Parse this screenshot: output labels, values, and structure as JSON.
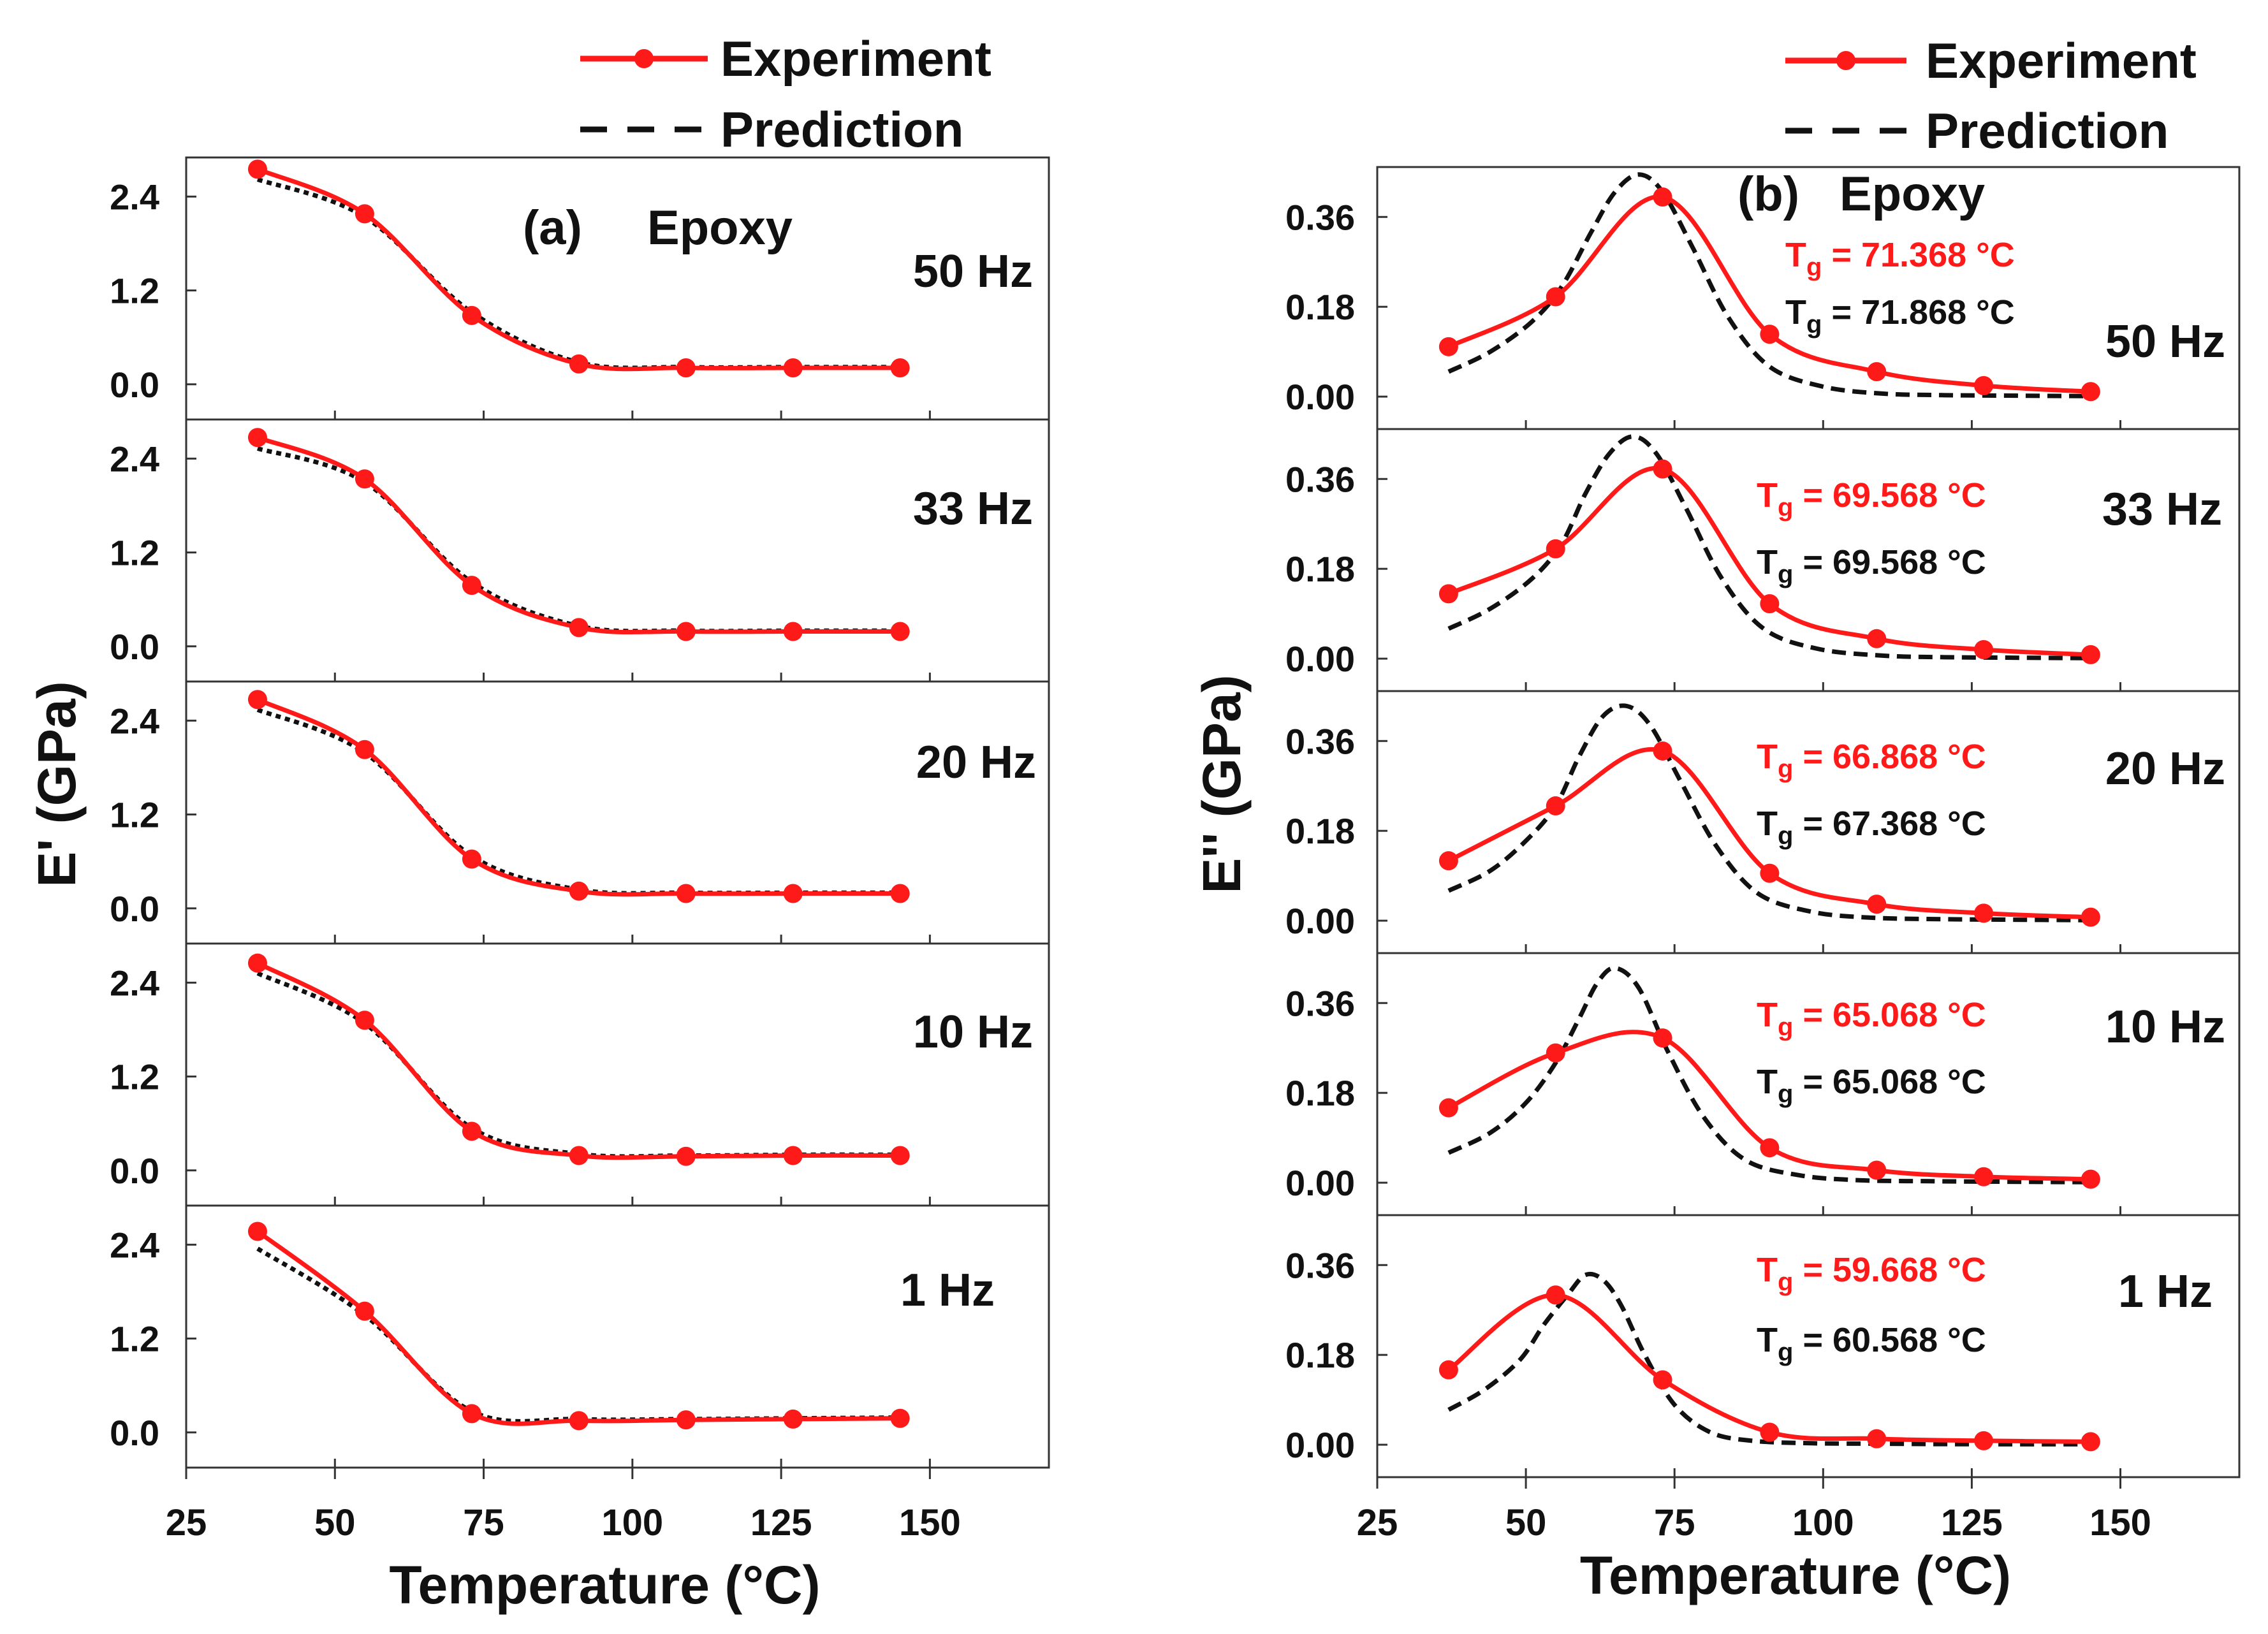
{
  "colors": {
    "experiment": "#ff1a1a",
    "prediction": "#111111",
    "frame": "#333333"
  },
  "legend": {
    "experiment": "Experiment",
    "prediction": "Prediction"
  },
  "chart_data": [
    {
      "type": "line",
      "panel_label": "(a)",
      "material": "Epoxy",
      "xlabel": "Temperature (°C)",
      "ylabel": "E' (GPa)",
      "xlim": [
        25,
        170
      ],
      "xticks": [
        25,
        50,
        75,
        100,
        125,
        150
      ],
      "ylim": [
        -0.45,
        2.9
      ],
      "yticks": [
        "0.0",
        "1.2",
        "2.4"
      ],
      "x": [
        37,
        55,
        73,
        91,
        109,
        127,
        145
      ],
      "panels": [
        {
          "freq": "50 Hz",
          "experiment": [
            2.75,
            2.18,
            0.88,
            0.26,
            0.21,
            0.21,
            0.21
          ],
          "prediction": [
            2.62,
            2.14,
            0.92,
            0.28,
            0.22,
            0.22,
            0.22
          ]
        },
        {
          "freq": "33 Hz",
          "experiment": [
            2.67,
            2.14,
            0.78,
            0.24,
            0.19,
            0.19,
            0.19
          ],
          "prediction": [
            2.53,
            2.1,
            0.82,
            0.26,
            0.2,
            0.2,
            0.2
          ]
        },
        {
          "freq": "20 Hz",
          "experiment": [
            2.67,
            2.03,
            0.63,
            0.22,
            0.19,
            0.19,
            0.19
          ],
          "prediction": [
            2.54,
            1.99,
            0.67,
            0.24,
            0.2,
            0.2,
            0.2
          ]
        },
        {
          "freq": "10 Hz",
          "experiment": [
            2.65,
            1.92,
            0.5,
            0.19,
            0.18,
            0.19,
            0.19
          ],
          "prediction": [
            2.52,
            1.88,
            0.54,
            0.21,
            0.19,
            0.2,
            0.2
          ]
        },
        {
          "freq": "1 Hz",
          "experiment": [
            2.57,
            1.55,
            0.24,
            0.15,
            0.16,
            0.17,
            0.18
          ],
          "prediction": [
            2.35,
            1.5,
            0.27,
            0.17,
            0.17,
            0.18,
            0.19
          ]
        }
      ]
    },
    {
      "type": "line",
      "panel_label": "(b)",
      "material": "Epoxy",
      "xlabel": "Temperature (°C)",
      "ylabel": "E'' (GPa)",
      "xlim": [
        25,
        170
      ],
      "xticks": [
        25,
        50,
        75,
        100,
        125,
        150
      ],
      "ylim": [
        -0.065,
        0.46
      ],
      "yticks": [
        "0.00",
        "0.18",
        "0.36"
      ],
      "x": [
        37,
        55,
        73,
        91,
        109,
        127,
        145
      ],
      "panels": [
        {
          "freq": "50 Hz",
          "tg_exp_label": "Tg",
          "tg_exp_value": " = 71.368 °C",
          "tg_pred_label": "Tg",
          "tg_pred_value": " = 71.868 °C",
          "experiment": [
            0.1,
            0.2,
            0.4,
            0.125,
            0.05,
            0.022,
            0.01
          ],
          "prediction_x": [
            37,
            44,
            51,
            56,
            61,
            65,
            69,
            73,
            78,
            84,
            91,
            100,
            110,
            120,
            130,
            145
          ],
          "prediction": [
            0.05,
            0.09,
            0.15,
            0.22,
            0.33,
            0.41,
            0.445,
            0.41,
            0.3,
            0.16,
            0.06,
            0.02,
            0.006,
            0.003,
            0.002,
            0.001
          ]
        },
        {
          "freq": "33 Hz",
          "tg_exp_label": "Tg",
          "tg_exp_value": " = 69.568 °C",
          "tg_pred_label": "Tg",
          "tg_pred_value": " = 69.568 °C",
          "experiment": [
            0.13,
            0.22,
            0.38,
            0.11,
            0.04,
            0.018,
            0.008
          ],
          "prediction_x": [
            37,
            44,
            51,
            56,
            60,
            64,
            68,
            72,
            77,
            83,
            90,
            99,
            110,
            120,
            130,
            145
          ],
          "prediction": [
            0.06,
            0.1,
            0.16,
            0.23,
            0.33,
            0.41,
            0.445,
            0.41,
            0.3,
            0.16,
            0.06,
            0.02,
            0.006,
            0.003,
            0.002,
            0.001
          ]
        },
        {
          "freq": "20 Hz",
          "tg_exp_label": "Tg",
          "tg_exp_value": " = 66.868 °C",
          "tg_pred_label": "Tg",
          "tg_pred_value": " = 67.368 °C",
          "experiment": [
            0.12,
            0.23,
            0.34,
            0.095,
            0.033,
            0.015,
            0.007
          ],
          "prediction_x": [
            37,
            44,
            50,
            55,
            59,
            63,
            67,
            71,
            76,
            82,
            89,
            98,
            108,
            120,
            130,
            145
          ],
          "prediction": [
            0.06,
            0.1,
            0.16,
            0.23,
            0.33,
            0.41,
            0.43,
            0.39,
            0.28,
            0.15,
            0.055,
            0.018,
            0.006,
            0.003,
            0.002,
            0.001
          ]
        },
        {
          "freq": "10 Hz",
          "tg_exp_label": "Tg",
          "tg_exp_value": " = 65.068 °C",
          "tg_pred_label": "Tg",
          "tg_pred_value": " = 65.068 °C",
          "experiment": [
            0.15,
            0.26,
            0.29,
            0.07,
            0.025,
            0.012,
            0.007
          ],
          "prediction_x": [
            37,
            44,
            50,
            55,
            59,
            62,
            65,
            69,
            74,
            80,
            87,
            96,
            106,
            118,
            130,
            145
          ],
          "prediction": [
            0.06,
            0.1,
            0.16,
            0.24,
            0.33,
            0.4,
            0.43,
            0.39,
            0.26,
            0.13,
            0.045,
            0.015,
            0.005,
            0.003,
            0.002,
            0.001
          ]
        },
        {
          "freq": "1 Hz",
          "tg_exp_label": "Tg",
          "tg_exp_value": " = 59.668 °C",
          "tg_pred_label": "Tg",
          "tg_pred_value": " = 60.568 °C",
          "experiment": [
            0.15,
            0.3,
            0.13,
            0.025,
            0.012,
            0.008,
            0.006
          ],
          "prediction_x": [
            37,
            43,
            49,
            53,
            57,
            60,
            63,
            66,
            70,
            75,
            81,
            88,
            98,
            110,
            125,
            145
          ],
          "prediction": [
            0.07,
            0.11,
            0.17,
            0.24,
            0.3,
            0.34,
            0.33,
            0.28,
            0.18,
            0.08,
            0.025,
            0.008,
            0.003,
            0.002,
            0.001,
            0.001
          ]
        }
      ]
    }
  ]
}
